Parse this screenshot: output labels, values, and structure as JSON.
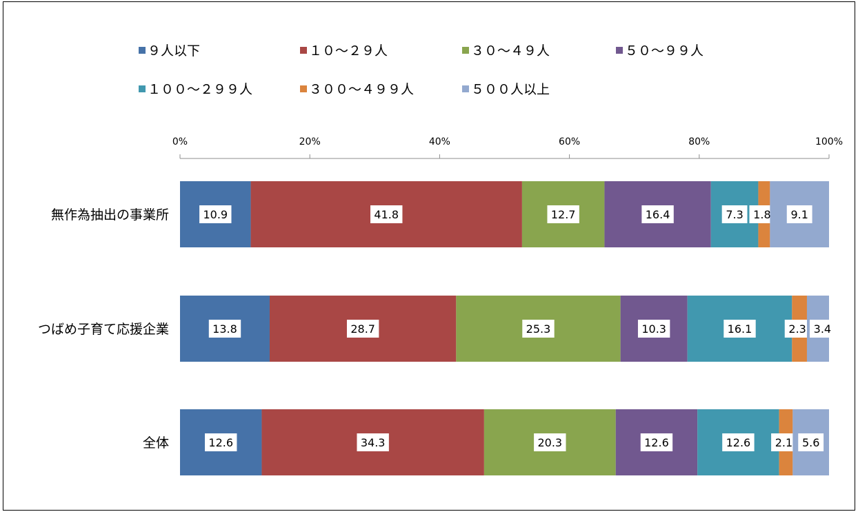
{
  "chart_data": {
    "type": "bar",
    "orientation": "horizontal",
    "stacked": "percent",
    "categories": [
      "無作為抽出の事業所",
      "つばめ子育て応援企業",
      "全体"
    ],
    "series": [
      {
        "name": "９人以下",
        "color": "#4672A8",
        "values": [
          10.9,
          13.8,
          12.6
        ]
      },
      {
        "name": "１０～２９人",
        "color": "#A94745",
        "values": [
          41.8,
          28.7,
          34.3
        ]
      },
      {
        "name": "３０～４９人",
        "color": "#89A54E",
        "values": [
          12.7,
          25.3,
          20.3
        ]
      },
      {
        "name": "５０～９９人",
        "color": "#71588F",
        "values": [
          16.4,
          10.3,
          12.6
        ]
      },
      {
        "name": "１００～２９９人",
        "color": "#4198AF",
        "values": [
          7.3,
          16.1,
          12.6
        ]
      },
      {
        "name": "３００～４９９人",
        "color": "#DB843D",
        "values": [
          1.8,
          2.3,
          2.1
        ]
      },
      {
        "name": "５００人以上",
        "color": "#93A9CF",
        "values": [
          9.1,
          3.4,
          5.6
        ]
      }
    ],
    "xticks": [
      "0%",
      "20%",
      "40%",
      "60%",
      "80%",
      "100%"
    ],
    "xlim": [
      0,
      100
    ],
    "axis_position": "top",
    "legend_position": "top",
    "grid": false
  }
}
